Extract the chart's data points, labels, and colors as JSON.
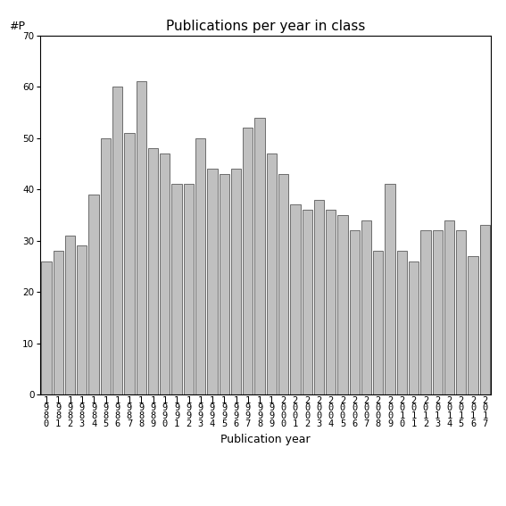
{
  "title": "Publications per year in class",
  "xlabel": "Publication year",
  "ylabel": "#P",
  "years": [
    1980,
    1981,
    1982,
    1983,
    1984,
    1985,
    1986,
    1987,
    1988,
    1989,
    1990,
    1991,
    1992,
    1993,
    1994,
    1995,
    1996,
    1997,
    1998,
    1999,
    2000,
    2001,
    2002,
    2003,
    2004,
    2005,
    2006,
    2007,
    2008,
    2009,
    2010,
    2011,
    2012,
    2013,
    2014,
    2015,
    2016,
    2017
  ],
  "values": [
    26,
    28,
    31,
    29,
    39,
    50,
    60,
    51,
    61,
    48,
    47,
    41,
    41,
    50,
    44,
    43,
    44,
    52,
    54,
    47,
    43,
    37,
    36,
    38,
    36,
    35,
    32,
    34,
    28,
    41,
    28,
    26,
    32,
    32,
    34,
    32,
    27,
    33
  ],
  "bar_color": "#c0c0c0",
  "bar_edgecolor": "#404040",
  "ylim": [
    0,
    70
  ],
  "yticks": [
    0,
    10,
    20,
    30,
    40,
    50,
    60,
    70
  ],
  "background_color": "#ffffff",
  "title_fontsize": 11,
  "xlabel_fontsize": 9,
  "tick_fontsize": 7.5
}
